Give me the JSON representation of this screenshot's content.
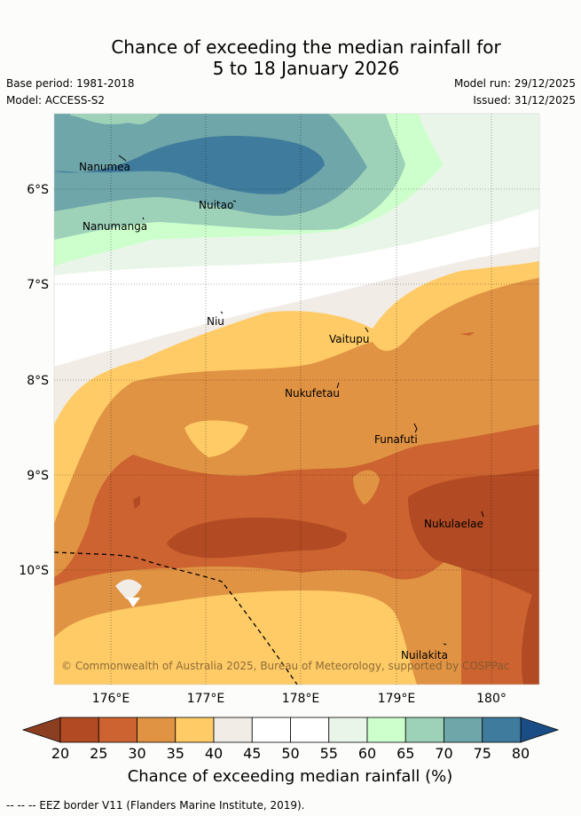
{
  "header": {
    "title_line1": "Chance of exceeding the median rainfall for",
    "title_line2": "5 to 18 January 2026",
    "base_period": "Base period: 1981-2018",
    "model": "Model: ACCESS-S2",
    "model_run": "Model run: 29/12/2025",
    "issued": "Issued: 31/12/2025"
  },
  "map": {
    "lat_labels": [
      "6°S",
      "7°S",
      "8°S",
      "9°S",
      "10°S"
    ],
    "lon_labels": [
      "176°E",
      "177°E",
      "178°E",
      "179°E",
      "180°"
    ],
    "places": [
      "Nanumea",
      "Nuitao",
      "Nanumanga",
      "Niu",
      "Vaitupu",
      "Nukufetau",
      "Funafuti",
      "Nukulaelae",
      "Nuilakita"
    ],
    "copyright": "© Commonwealth of Australia 2025, Bureau of Meteorology, supported by COSPPac"
  },
  "colorbar": {
    "ticks": [
      "20",
      "25",
      "30",
      "35",
      "40",
      "45",
      "50",
      "55",
      "60",
      "65",
      "70",
      "75",
      "80"
    ],
    "colors": [
      "#b24a23",
      "#cc6330",
      "#e09343",
      "#fecb66",
      "#f1ece6",
      "#ffffff",
      "#ffffff",
      "#eaf5e9",
      "#ccffcc",
      "#9dd1b8",
      "#6fa6aa",
      "#3f7b9c"
    ],
    "low_color": "#8c3e21",
    "high_color": "#1a4d85",
    "label": "Chance of exceeding median rainfall (%)"
  },
  "footer": {
    "legend": "-- -- -- EEZ border V11 (Flanders Marine Institute, 2019)."
  }
}
